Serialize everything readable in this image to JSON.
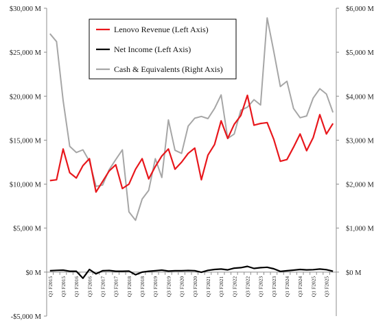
{
  "chart_data": {
    "type": "line",
    "legend_position": "top-left-inside",
    "grid": false,
    "y_left": {
      "range": [
        -5000,
        30000
      ],
      "ticks": [
        -5000,
        0,
        5000,
        10000,
        15000,
        20000,
        25000,
        30000
      ],
      "tick_labels": [
        "-$5,000 M",
        "$0 M",
        "$5,000 M",
        "$10,000 M",
        "$15,000 M",
        "$20,000 M",
        "$25,000 M",
        "$30,000 M"
      ]
    },
    "y_right": {
      "range": [
        -1000,
        6000
      ],
      "ticks": [
        0,
        1000,
        2000,
        3000,
        4000,
        5000,
        6000
      ],
      "tick_labels": [
        "$0 M",
        "$1,000 M",
        "$2,000 M",
        "$3,000 M",
        "$4,000 M",
        "$5,000 M",
        "$6,000 M"
      ]
    },
    "x_tick_labels": [
      "Q1 F2015",
      "Q3 F2015",
      "Q1 F2016",
      "Q3 F2016",
      "Q1 F2017",
      "Q3 F2017",
      "Q1 F2018",
      "Q3 F2018",
      "Q1 F2019",
      "Q3 F2019",
      "Q1 F2020",
      "Q3 F2020",
      "Q1 F2021",
      "Q3 F2021",
      "Q1 F2022",
      "Q3 F2022",
      "Q1 F2023",
      "Q3 F2023",
      "Q1 F2024",
      "Q3 F2024",
      "Q1 F2025",
      "Q3 F2025"
    ],
    "series": [
      {
        "name": "Lenovo Revenue (Left Axis)",
        "axis": "left",
        "color": "#e8171c",
        "values": [
          10400,
          10500,
          14000,
          11300,
          10700,
          12100,
          12900,
          9100,
          10300,
          11500,
          12200,
          9500,
          10000,
          11700,
          12900,
          10600,
          12000,
          13200,
          14000,
          11700,
          12500,
          13500,
          14100,
          10500,
          13300,
          14500,
          17200,
          15200,
          16800,
          17800,
          20100,
          16700,
          16900,
          17000,
          15100,
          12600,
          12800,
          14200,
          15700,
          13800,
          15300,
          17900,
          15700,
          16900
        ]
      },
      {
        "name": "Net Income (Left Axis)",
        "axis": "left",
        "color": "#000000",
        "values": [
          150,
          200,
          220,
          100,
          100,
          -700,
          300,
          -200,
          150,
          180,
          100,
          100,
          120,
          -300,
          0,
          100,
          150,
          220,
          110,
          150,
          150,
          180,
          160,
          -20,
          200,
          300,
          350,
          250,
          450,
          500,
          650,
          420,
          500,
          550,
          380,
          80,
          150,
          220,
          300,
          250,
          280,
          350,
          280,
          100
        ]
      },
      {
        "name": "Cash & Equivalents (Right Axis)",
        "axis": "right",
        "color": "#a6a6a6",
        "values": [
          5420,
          5240,
          3900,
          2860,
          2720,
          2780,
          2520,
          1950,
          1980,
          2330,
          2560,
          2780,
          1370,
          1180,
          1660,
          1860,
          2580,
          2150,
          3460,
          2770,
          2700,
          3320,
          3500,
          3540,
          3490,
          3720,
          4030,
          3040,
          3140,
          3680,
          3750,
          3920,
          3800,
          5780,
          5020,
          4220,
          4340,
          3720,
          3510,
          3550,
          3960,
          4170,
          4050,
          3630
        ]
      }
    ]
  }
}
